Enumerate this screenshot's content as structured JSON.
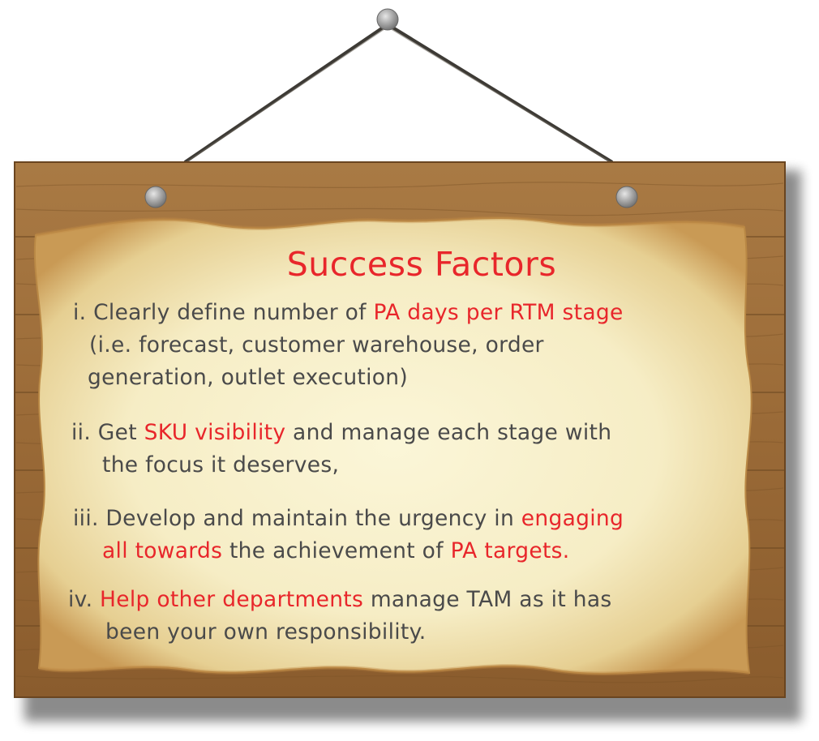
{
  "sign": {
    "title": "Success Factors",
    "items": [
      {
        "numeral": "i.",
        "lines": [
          [
            {
              "text": "i. Clearly define number of ",
              "accent": false
            },
            {
              "text": "PA days per RTM stage",
              "accent": true
            }
          ],
          [
            {
              "text": "(i.e. forecast, customer warehouse, order",
              "accent": false
            }
          ],
          [
            {
              "text": "generation, outlet execution)",
              "accent": false
            }
          ]
        ]
      },
      {
        "numeral": "ii.",
        "lines": [
          [
            {
              "text": "ii. Get ",
              "accent": false
            },
            {
              "text": "SKU visibility",
              "accent": true
            },
            {
              "text": " and manage each stage with",
              "accent": false
            }
          ],
          [
            {
              "text": "the focus it deserves,",
              "accent": false
            }
          ]
        ]
      },
      {
        "numeral": "iii.",
        "lines": [
          [
            {
              "text": "iii. Develop and maintain the urgency in ",
              "accent": false
            },
            {
              "text": "engaging",
              "accent": true
            }
          ],
          [
            {
              "text": "all towards",
              "accent": true
            },
            {
              "text": " the achievement of ",
              "accent": false
            },
            {
              "text": "PA targets.",
              "accent": true
            }
          ]
        ]
      },
      {
        "numeral": "iv.",
        "lines": [
          [
            {
              "text": "iv. ",
              "accent": false
            },
            {
              "text": "Help other departments",
              "accent": true
            },
            {
              "text": " manage TAM as it has",
              "accent": false
            }
          ],
          [
            {
              "text": "been your own responsibility.",
              "accent": false
            }
          ]
        ]
      }
    ]
  },
  "colors": {
    "accent": "#e8262b",
    "body_text": "#4a4a4a",
    "wood": "#9c6b36",
    "parchment": "#f5ecc4"
  }
}
